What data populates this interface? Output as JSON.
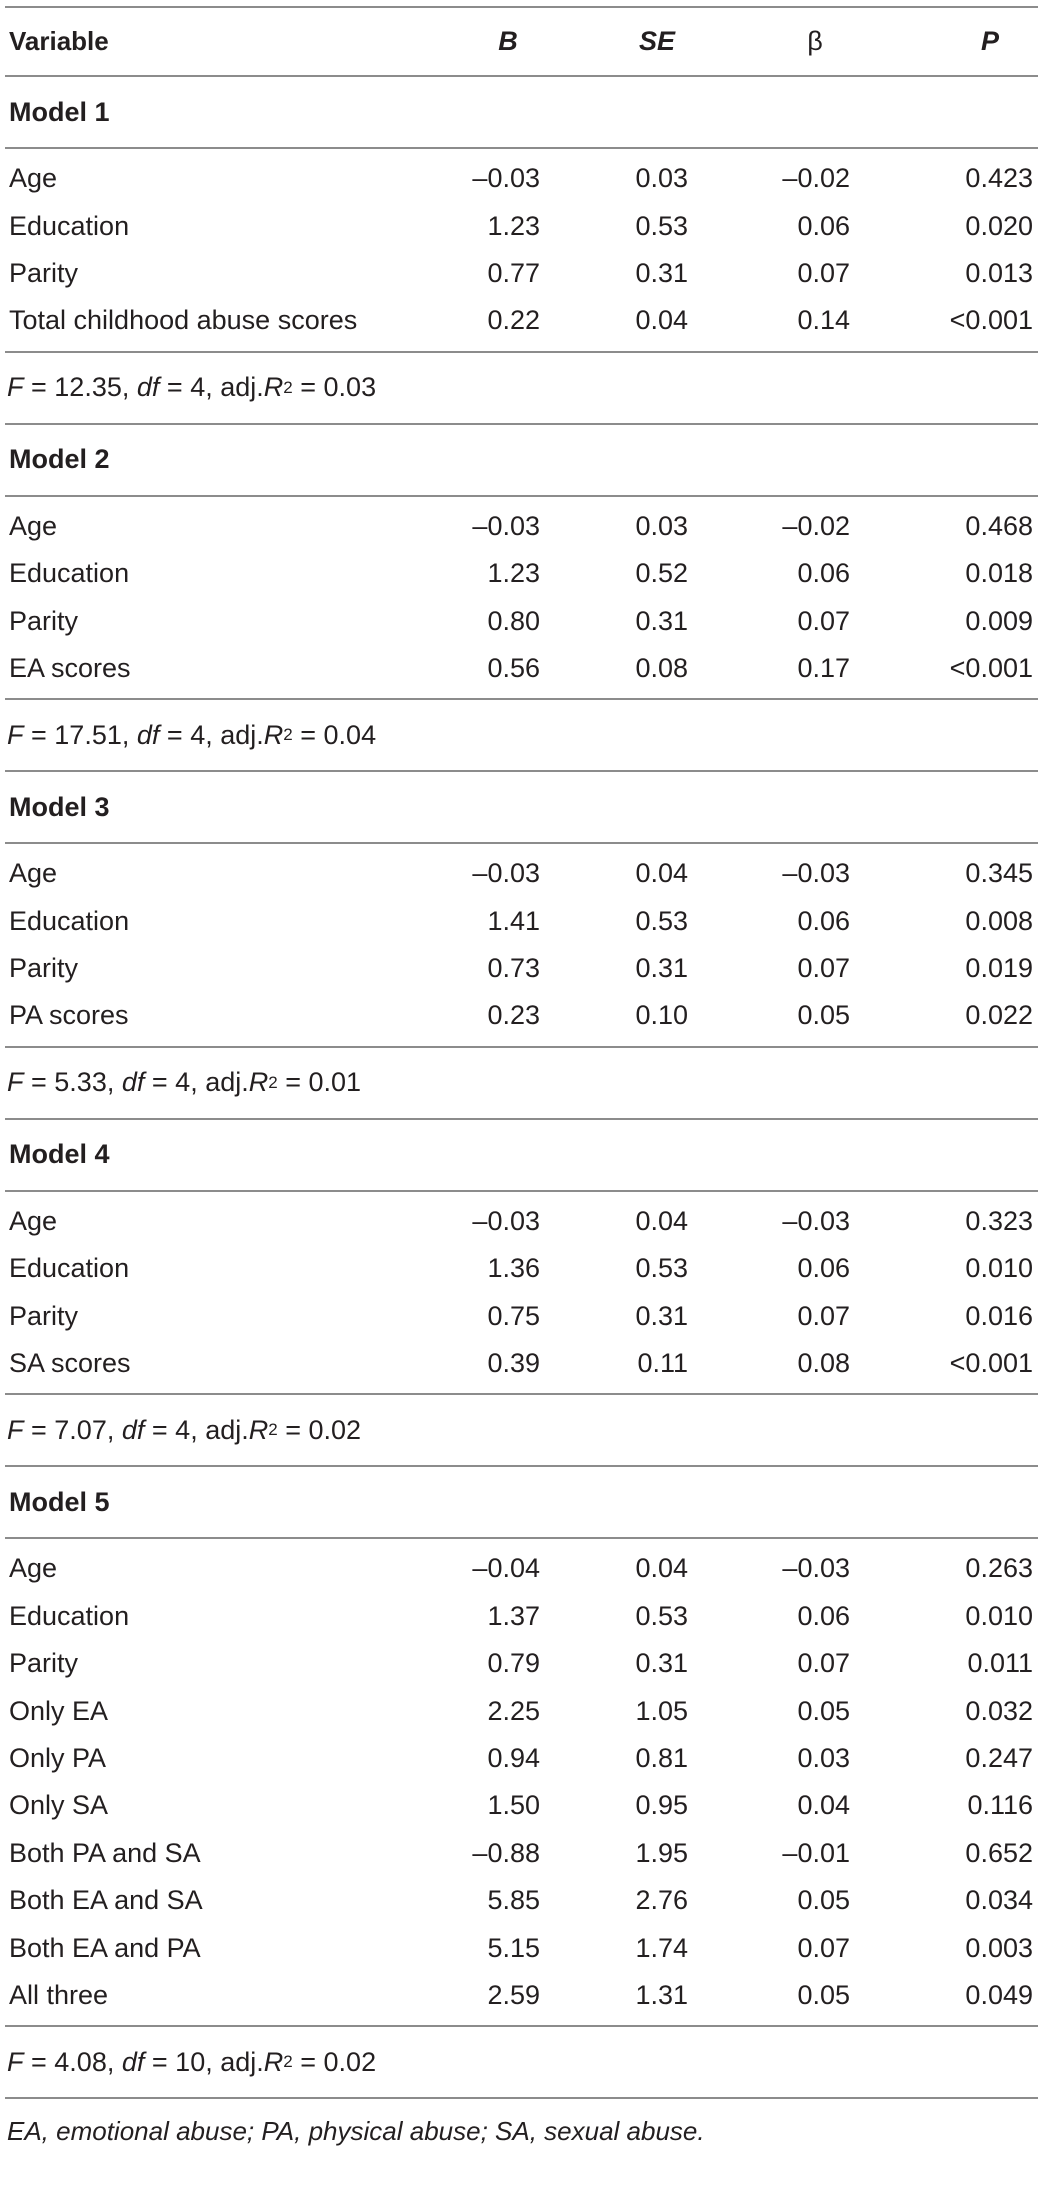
{
  "header": {
    "variable": "Variable",
    "b": "B",
    "se": "SE",
    "beta": "β",
    "p": "P"
  },
  "models": [
    {
      "title": "Model 1",
      "rows": [
        {
          "variable": "Age",
          "b": "–0.03",
          "se": "0.03",
          "beta": "–0.02",
          "p": "0.423"
        },
        {
          "variable": "Education",
          "b": "1.23",
          "se": "0.53",
          "beta": "0.06",
          "p": "0.020"
        },
        {
          "variable": "Parity",
          "b": "0.77",
          "se": "0.31",
          "beta": "0.07",
          "p": "0.013"
        },
        {
          "variable": "Total childhood abuse scores",
          "b": "0.22",
          "se": "0.04",
          "beta": "0.14",
          "p": "<0.001"
        }
      ],
      "fit": {
        "F": "12.35",
        "df": "4",
        "adjR2": "0.03"
      }
    },
    {
      "title": "Model 2",
      "rows": [
        {
          "variable": "Age",
          "b": "–0.03",
          "se": "0.03",
          "beta": "–0.02",
          "p": "0.468"
        },
        {
          "variable": "Education",
          "b": "1.23",
          "se": "0.52",
          "beta": "0.06",
          "p": "0.018"
        },
        {
          "variable": "Parity",
          "b": "0.80",
          "se": "0.31",
          "beta": "0.07",
          "p": "0.009"
        },
        {
          "variable": "EA scores",
          "b": "0.56",
          "se": "0.08",
          "beta": "0.17",
          "p": "<0.001"
        }
      ],
      "fit": {
        "F": "17.51",
        "df": "4",
        "adjR2": "0.04"
      }
    },
    {
      "title": "Model 3",
      "rows": [
        {
          "variable": "Age",
          "b": "–0.03",
          "se": "0.04",
          "beta": "–0.03",
          "p": "0.345"
        },
        {
          "variable": "Education",
          "b": "1.41",
          "se": "0.53",
          "beta": "0.06",
          "p": "0.008"
        },
        {
          "variable": "Parity",
          "b": "0.73",
          "se": "0.31",
          "beta": "0.07",
          "p": "0.019"
        },
        {
          "variable": "PA scores",
          "b": "0.23",
          "se": "0.10",
          "beta": "0.05",
          "p": "0.022"
        }
      ],
      "fit": {
        "F": "5.33",
        "df": "4",
        "adjR2": "0.01"
      }
    },
    {
      "title": "Model 4",
      "rows": [
        {
          "variable": "Age",
          "b": "–0.03",
          "se": "0.04",
          "beta": "–0.03",
          "p": "0.323"
        },
        {
          "variable": "Education",
          "b": "1.36",
          "se": "0.53",
          "beta": "0.06",
          "p": "0.010"
        },
        {
          "variable": "Parity",
          "b": "0.75",
          "se": "0.31",
          "beta": "0.07",
          "p": "0.016"
        },
        {
          "variable": "SA scores",
          "b": "0.39",
          "se": "0.11",
          "beta": "0.08",
          "p": "<0.001"
        }
      ],
      "fit": {
        "F": "7.07",
        "df": "4",
        "adjR2": "0.02"
      }
    },
    {
      "title": "Model 5",
      "rows": [
        {
          "variable": "Age",
          "b": "–0.04",
          "se": "0.04",
          "beta": "–0.03",
          "p": "0.263"
        },
        {
          "variable": "Education",
          "b": "1.37",
          "se": "0.53",
          "beta": "0.06",
          "p": "0.010"
        },
        {
          "variable": "Parity",
          "b": "0.79",
          "se": "0.31",
          "beta": "0.07",
          "p": "0.011"
        },
        {
          "variable": "Only EA",
          "b": "2.25",
          "se": "1.05",
          "beta": "0.05",
          "p": "0.032"
        },
        {
          "variable": "Only PA",
          "b": "0.94",
          "se": "0.81",
          "beta": "0.03",
          "p": "0.247"
        },
        {
          "variable": "Only SA",
          "b": "1.50",
          "se": "0.95",
          "beta": "0.04",
          "p": "0.116"
        },
        {
          "variable": "Both PA and SA",
          "b": "–0.88",
          "se": "1.95",
          "beta": "–0.01",
          "p": "0.652"
        },
        {
          "variable": "Both EA and SA",
          "b": "5.85",
          "se": "2.76",
          "beta": "0.05",
          "p": "0.034"
        },
        {
          "variable": "Both EA and PA",
          "b": "5.15",
          "se": "1.74",
          "beta": "0.07",
          "p": "0.003"
        },
        {
          "variable": "All three",
          "b": "2.59",
          "se": "1.31",
          "beta": "0.05",
          "p": "0.049"
        }
      ],
      "fit": {
        "F": "4.08",
        "df": "10",
        "adjR2": "0.02"
      }
    }
  ],
  "fit_labels": {
    "F": "F",
    "eq": " = ",
    "df": "df",
    "adj": "adj.",
    "R": "R",
    "sup": "2"
  },
  "footnote": "EA, emotional abuse; PA, physical abuse; SA, sexual abuse.",
  "colors": {
    "text": "#231f20",
    "rule": "#8c8c8c",
    "background": "#ffffff"
  }
}
